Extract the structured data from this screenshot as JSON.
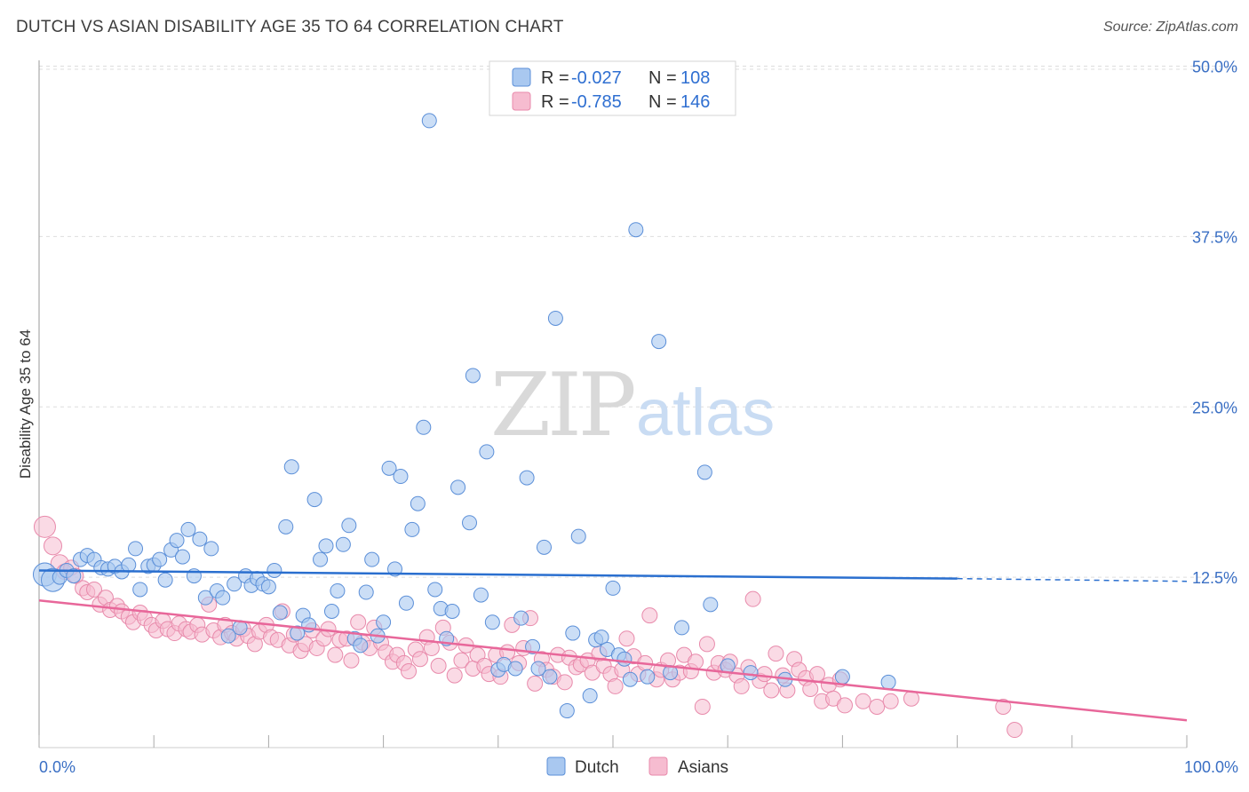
{
  "title": "DUTCH VS ASIAN DISABILITY AGE 35 TO 64 CORRELATION CHART",
  "source": "Source: ZipAtlas.com",
  "watermark": {
    "zip": "ZIP",
    "atlas": "atlas"
  },
  "colors": {
    "dutch_fill": "#a9c8f0",
    "dutch_stroke": "#5b8fd8",
    "dutch_line": "#2a6fcf",
    "asian_fill": "#f6bcd0",
    "asian_stroke": "#e88aab",
    "asian_line": "#e8679a",
    "axis_label": "#3a6fc4",
    "grid": "#dddddd"
  },
  "legend": {
    "dutch": {
      "r_label": "R = ",
      "r_value": "-0.027",
      "n_label": "N = ",
      "n_value": "108"
    },
    "asians": {
      "r_label": "R = ",
      "r_value": "-0.785",
      "n_label": "N = ",
      "n_value": "146"
    }
  },
  "bottom_legend": [
    "Dutch",
    "Asians"
  ],
  "chart_data": {
    "type": "scatter",
    "title": "DUTCH VS ASIAN DISABILITY AGE 35 TO 64 CORRELATION CHART",
    "ylabel": "Disability Age 35 to 64",
    "xlabel": "",
    "x_tick_labels": [
      "0.0%",
      "100.0%"
    ],
    "y_tick_labels": [
      "12.5%",
      "25.0%",
      "37.5%",
      "50.0%"
    ],
    "y_ticks": [
      12.5,
      25.0,
      37.5,
      50.0
    ],
    "xlim": [
      0,
      100
    ],
    "ylim": [
      0,
      50
    ],
    "grid": true,
    "legend_position": "top-center",
    "series": [
      {
        "name": "Dutch",
        "r": -0.027,
        "n": 108,
        "trend": {
          "x": [
            0,
            80
          ],
          "y": [
            13.0,
            12.4
          ],
          "dashed_to": [
            100,
            12.2
          ]
        },
        "points": [
          [
            0.5,
            12.7
          ],
          [
            1.2,
            12.3
          ],
          [
            1.8,
            12.5
          ],
          [
            2.4,
            13.0
          ],
          [
            3.0,
            12.6
          ],
          [
            3.6,
            13.8
          ],
          [
            4.2,
            14.1
          ],
          [
            4.8,
            13.8
          ],
          [
            5.4,
            13.2
          ],
          [
            6.0,
            13.1
          ],
          [
            6.6,
            13.3
          ],
          [
            7.2,
            12.9
          ],
          [
            7.8,
            13.4
          ],
          [
            8.4,
            14.6
          ],
          [
            8.8,
            11.6
          ],
          [
            9.5,
            13.3
          ],
          [
            10.0,
            13.4
          ],
          [
            10.5,
            13.8
          ],
          [
            11.0,
            12.3
          ],
          [
            11.5,
            14.5
          ],
          [
            12.0,
            15.2
          ],
          [
            12.5,
            14.0
          ],
          [
            13.0,
            16.0
          ],
          [
            13.5,
            12.6
          ],
          [
            14.0,
            15.3
          ],
          [
            14.5,
            11.0
          ],
          [
            15.0,
            14.6
          ],
          [
            15.5,
            11.5
          ],
          [
            16.0,
            11.0
          ],
          [
            16.5,
            8.2
          ],
          [
            17.0,
            12.0
          ],
          [
            17.5,
            8.8
          ],
          [
            18.0,
            12.6
          ],
          [
            18.5,
            11.9
          ],
          [
            19.0,
            12.4
          ],
          [
            19.5,
            12.0
          ],
          [
            20.0,
            11.8
          ],
          [
            20.5,
            13.0
          ],
          [
            21.0,
            9.9
          ],
          [
            21.5,
            16.2
          ],
          [
            22.0,
            20.6
          ],
          [
            22.5,
            8.4
          ],
          [
            23.0,
            9.7
          ],
          [
            23.5,
            9.0
          ],
          [
            24.0,
            18.2
          ],
          [
            24.5,
            13.8
          ],
          [
            25.0,
            14.8
          ],
          [
            25.5,
            10.0
          ],
          [
            26.0,
            11.5
          ],
          [
            26.5,
            14.9
          ],
          [
            27.0,
            16.3
          ],
          [
            27.5,
            8.0
          ],
          [
            28.0,
            7.5
          ],
          [
            28.5,
            11.4
          ],
          [
            29.0,
            13.8
          ],
          [
            29.5,
            8.2
          ],
          [
            30.0,
            9.2
          ],
          [
            30.5,
            20.5
          ],
          [
            31.0,
            13.1
          ],
          [
            31.5,
            19.9
          ],
          [
            32.0,
            10.6
          ],
          [
            32.5,
            16.0
          ],
          [
            33.0,
            17.9
          ],
          [
            33.5,
            23.5
          ],
          [
            34.0,
            46.0
          ],
          [
            34.5,
            11.6
          ],
          [
            35.0,
            10.2
          ],
          [
            35.5,
            8.0
          ],
          [
            36.0,
            10.0
          ],
          [
            36.5,
            19.1
          ],
          [
            37.5,
            16.5
          ],
          [
            37.8,
            27.3
          ],
          [
            38.5,
            11.2
          ],
          [
            39.0,
            21.7
          ],
          [
            39.5,
            9.2
          ],
          [
            40.0,
            5.7
          ],
          [
            40.5,
            6.1
          ],
          [
            41.5,
            5.8
          ],
          [
            42.0,
            9.5
          ],
          [
            42.5,
            19.8
          ],
          [
            43.0,
            7.4
          ],
          [
            43.5,
            5.8
          ],
          [
            44.0,
            14.7
          ],
          [
            44.5,
            5.2
          ],
          [
            45.0,
            31.5
          ],
          [
            46.0,
            2.7
          ],
          [
            46.5,
            8.4
          ],
          [
            47.0,
            15.5
          ],
          [
            48.0,
            3.8
          ],
          [
            48.5,
            7.9
          ],
          [
            49.0,
            8.1
          ],
          [
            49.5,
            7.2
          ],
          [
            50.0,
            11.7
          ],
          [
            50.5,
            6.8
          ],
          [
            51.0,
            6.5
          ],
          [
            51.5,
            5.0
          ],
          [
            52.0,
            38.0
          ],
          [
            53.0,
            5.2
          ],
          [
            54.0,
            29.8
          ],
          [
            55.0,
            5.5
          ],
          [
            56.0,
            8.8
          ],
          [
            58.0,
            20.2
          ],
          [
            58.5,
            10.5
          ],
          [
            60.0,
            6.0
          ],
          [
            62.0,
            5.5
          ],
          [
            65.0,
            5.0
          ],
          [
            70.0,
            5.2
          ],
          [
            74.0,
            4.8
          ]
        ]
      },
      {
        "name": "Asians",
        "r": -0.785,
        "n": 146,
        "trend": {
          "x": [
            0,
            100
          ],
          "y": [
            10.8,
            2.0
          ]
        },
        "points": [
          [
            0.5,
            16.2
          ],
          [
            1.2,
            14.8
          ],
          [
            1.8,
            13.5
          ],
          [
            2.2,
            12.9
          ],
          [
            2.8,
            13.2
          ],
          [
            3.2,
            12.6
          ],
          [
            3.8,
            11.7
          ],
          [
            4.2,
            11.4
          ],
          [
            4.8,
            11.6
          ],
          [
            5.3,
            10.5
          ],
          [
            5.8,
            11.0
          ],
          [
            6.2,
            10.1
          ],
          [
            6.8,
            10.4
          ],
          [
            7.2,
            10.0
          ],
          [
            7.8,
            9.6
          ],
          [
            8.2,
            9.2
          ],
          [
            8.8,
            9.9
          ],
          [
            9.2,
            9.5
          ],
          [
            9.8,
            9.0
          ],
          [
            10.2,
            8.6
          ],
          [
            10.8,
            9.3
          ],
          [
            11.2,
            8.7
          ],
          [
            11.8,
            8.4
          ],
          [
            12.2,
            9.1
          ],
          [
            12.8,
            8.7
          ],
          [
            13.2,
            8.5
          ],
          [
            13.8,
            9.0
          ],
          [
            14.2,
            8.3
          ],
          [
            14.8,
            10.5
          ],
          [
            15.2,
            8.6
          ],
          [
            15.8,
            8.1
          ],
          [
            16.2,
            9.0
          ],
          [
            16.8,
            8.4
          ],
          [
            17.2,
            8.0
          ],
          [
            17.8,
            8.7
          ],
          [
            18.2,
            8.2
          ],
          [
            18.8,
            7.6
          ],
          [
            19.2,
            8.5
          ],
          [
            19.8,
            9.0
          ],
          [
            20.2,
            8.1
          ],
          [
            20.8,
            7.9
          ],
          [
            21.2,
            10.0
          ],
          [
            21.8,
            7.5
          ],
          [
            22.2,
            8.3
          ],
          [
            22.8,
            7.1
          ],
          [
            23.2,
            7.6
          ],
          [
            23.8,
            8.6
          ],
          [
            24.2,
            7.3
          ],
          [
            24.8,
            8.0
          ],
          [
            25.2,
            8.7
          ],
          [
            25.8,
            6.8
          ],
          [
            26.2,
            7.9
          ],
          [
            26.8,
            8.0
          ],
          [
            27.2,
            6.4
          ],
          [
            27.8,
            9.2
          ],
          [
            28.2,
            7.7
          ],
          [
            28.8,
            7.3
          ],
          [
            29.2,
            8.8
          ],
          [
            29.8,
            7.7
          ],
          [
            30.2,
            7.0
          ],
          [
            30.8,
            6.3
          ],
          [
            31.2,
            6.8
          ],
          [
            31.8,
            6.2
          ],
          [
            32.2,
            5.6
          ],
          [
            32.8,
            7.2
          ],
          [
            33.2,
            6.5
          ],
          [
            33.8,
            8.1
          ],
          [
            34.2,
            7.3
          ],
          [
            34.8,
            6.0
          ],
          [
            35.2,
            8.8
          ],
          [
            35.8,
            7.7
          ],
          [
            36.2,
            5.3
          ],
          [
            36.8,
            6.4
          ],
          [
            37.2,
            7.5
          ],
          [
            37.8,
            5.8
          ],
          [
            38.2,
            6.8
          ],
          [
            38.8,
            6.0
          ],
          [
            39.2,
            5.4
          ],
          [
            39.8,
            6.8
          ],
          [
            40.2,
            5.2
          ],
          [
            40.8,
            7.0
          ],
          [
            41.2,
            9.0
          ],
          [
            41.8,
            6.2
          ],
          [
            42.2,
            7.3
          ],
          [
            42.8,
            9.5
          ],
          [
            43.2,
            4.7
          ],
          [
            43.8,
            6.5
          ],
          [
            44.2,
            5.7
          ],
          [
            44.8,
            5.2
          ],
          [
            45.2,
            6.8
          ],
          [
            45.8,
            4.8
          ],
          [
            46.2,
            6.6
          ],
          [
            46.8,
            5.9
          ],
          [
            47.2,
            6.1
          ],
          [
            47.8,
            6.4
          ],
          [
            48.2,
            5.5
          ],
          [
            48.8,
            6.9
          ],
          [
            49.2,
            6.0
          ],
          [
            49.8,
            5.4
          ],
          [
            50.2,
            4.5
          ],
          [
            50.8,
            5.7
          ],
          [
            51.2,
            8.0
          ],
          [
            51.8,
            6.7
          ],
          [
            52.2,
            5.4
          ],
          [
            52.8,
            6.2
          ],
          [
            53.2,
            9.7
          ],
          [
            53.8,
            5.0
          ],
          [
            54.2,
            5.7
          ],
          [
            54.8,
            6.4
          ],
          [
            55.2,
            5.0
          ],
          [
            55.8,
            5.5
          ],
          [
            56.2,
            6.8
          ],
          [
            56.8,
            5.6
          ],
          [
            57.2,
            6.3
          ],
          [
            57.8,
            3.0
          ],
          [
            58.2,
            7.6
          ],
          [
            58.8,
            5.5
          ],
          [
            59.2,
            6.2
          ],
          [
            59.8,
            5.7
          ],
          [
            60.2,
            6.3
          ],
          [
            60.8,
            5.3
          ],
          [
            61.2,
            4.5
          ],
          [
            61.8,
            5.9
          ],
          [
            62.2,
            10.9
          ],
          [
            62.8,
            4.9
          ],
          [
            63.2,
            5.4
          ],
          [
            63.8,
            4.2
          ],
          [
            64.2,
            6.9
          ],
          [
            64.8,
            5.3
          ],
          [
            65.2,
            4.2
          ],
          [
            65.8,
            6.5
          ],
          [
            66.2,
            5.7
          ],
          [
            66.8,
            5.1
          ],
          [
            67.2,
            4.3
          ],
          [
            67.8,
            5.4
          ],
          [
            68.2,
            3.4
          ],
          [
            68.8,
            4.6
          ],
          [
            69.2,
            3.6
          ],
          [
            69.8,
            5.0
          ],
          [
            70.2,
            3.1
          ],
          [
            71.8,
            3.4
          ],
          [
            73.0,
            3.0
          ],
          [
            74.2,
            3.4
          ],
          [
            76.0,
            3.6
          ],
          [
            84.0,
            3.0
          ],
          [
            85.0,
            1.3
          ]
        ]
      }
    ]
  }
}
